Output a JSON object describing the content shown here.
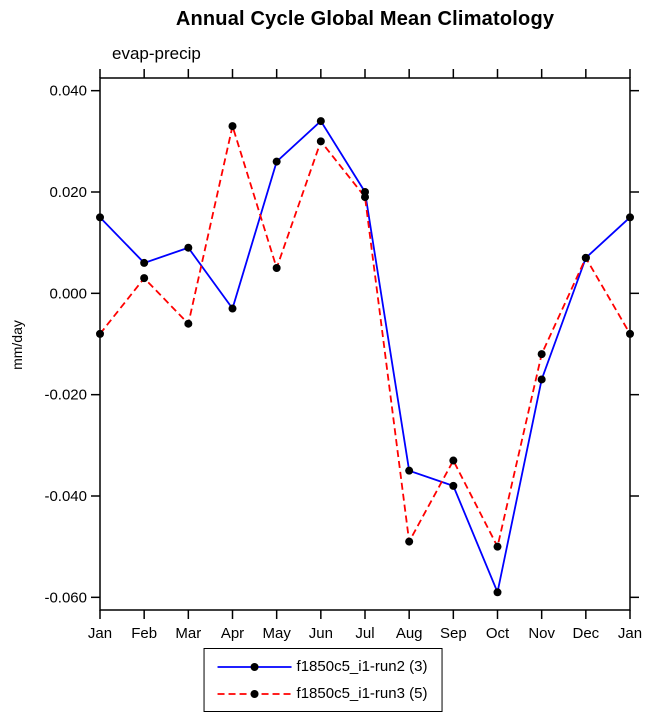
{
  "chart": {
    "title": "Annual Cycle Global Mean Climatology",
    "subtitle": "evap-precip",
    "ylabel": "mm/day"
  },
  "chart_data": {
    "type": "line",
    "title": "Annual Cycle Global Mean Climatology",
    "subtitle": "evap-precip",
    "xlabel": "",
    "ylabel": "mm/day",
    "categories": [
      "Jan",
      "Feb",
      "Mar",
      "Apr",
      "May",
      "Jun",
      "Jul",
      "Aug",
      "Sep",
      "Oct",
      "Nov",
      "Dec",
      "Jan"
    ],
    "series": [
      {
        "name": "f1850c5_i1-run2 (3)",
        "color": "#0000ff",
        "dash": "solid",
        "values": [
          0.015,
          0.006,
          0.009,
          -0.003,
          0.026,
          0.034,
          0.02,
          -0.035,
          -0.038,
          -0.059,
          -0.017,
          0.007,
          0.015
        ]
      },
      {
        "name": "f1850c5_i1-run3 (5)",
        "color": "#ff0000",
        "dash": "dashed",
        "values": [
          -0.008,
          0.003,
          -0.006,
          0.033,
          0.005,
          0.03,
          0.019,
          -0.049,
          -0.033,
          -0.05,
          -0.012,
          0.007,
          -0.008
        ]
      }
    ],
    "marker_color": "#000000",
    "ylim": [
      -0.0625,
      0.0425
    ],
    "yticks": [
      0.04,
      0.02,
      0.0,
      -0.02,
      -0.04,
      -0.06
    ],
    "ytick_labels": [
      "0.040",
      "0.020",
      "0.000",
      "-0.020",
      "-0.040",
      "-0.060"
    ],
    "grid": false,
    "legend_position": "bottom"
  }
}
